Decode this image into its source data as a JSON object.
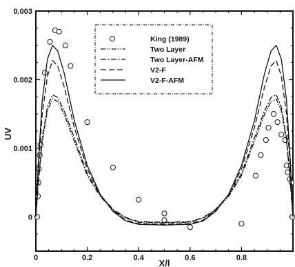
{
  "chart_data": {
    "type": "line",
    "title": "",
    "xlabel": "X/l",
    "ylabel": "UV",
    "xlim": [
      0,
      1
    ],
    "ylim": [
      -0.0005,
      0.003
    ],
    "x_ticks": [
      0,
      0.2,
      0.4,
      0.6,
      0.8
    ],
    "x_tick_labels": [
      "0",
      "0.2",
      "0.4",
      "0.6",
      "0.8"
    ],
    "y_ticks": [
      0,
      0.001,
      0.002,
      0.003
    ],
    "y_tick_labels": [
      "0",
      "0.001",
      "0.002",
      "0.003"
    ],
    "grid": false,
    "legend_position": "top-center",
    "series": [
      {
        "name": "King (1989)",
        "style": "markers-circle",
        "points": [
          [
            0.005,
            0.0
          ],
          [
            0.008,
            0.0003
          ],
          [
            0.01,
            0.0005
          ],
          [
            0.012,
            0.0007
          ],
          [
            0.015,
            0.0009
          ],
          [
            0.018,
            0.00105
          ],
          [
            0.035,
            0.0021
          ],
          [
            0.055,
            0.00255
          ],
          [
            0.075,
            0.00272
          ],
          [
            0.09,
            0.0027
          ],
          [
            0.115,
            0.0025
          ],
          [
            0.135,
            0.0022
          ],
          [
            0.2,
            0.00138
          ],
          [
            0.3,
            0.00072
          ],
          [
            0.4,
            0.00025
          ],
          [
            0.5,
            5e-05
          ],
          [
            0.5,
            -5e-05
          ],
          [
            0.6,
            -0.00015
          ],
          [
            0.8,
            -0.0001
          ],
          [
            0.855,
            0.0006
          ],
          [
            0.875,
            0.0009
          ],
          [
            0.895,
            0.00112
          ],
          [
            0.905,
            0.0013
          ],
          [
            0.925,
            0.0015
          ],
          [
            0.94,
            0.00138
          ],
          [
            0.955,
            0.0012
          ],
          [
            0.97,
            0.00112
          ],
          [
            0.975,
            0.00075
          ],
          [
            0.98,
            0.00065
          ],
          [
            0.988,
            0.00055
          ],
          [
            0.995,
            0.0005
          ],
          [
            0.998,
            0.0
          ]
        ]
      },
      {
        "name": "Two Layer",
        "style": "dash-dot-dot",
        "points": [
          [
            0.0,
            0.0
          ],
          [
            0.01,
            0.0005
          ],
          [
            0.025,
            0.0011
          ],
          [
            0.045,
            0.00155
          ],
          [
            0.065,
            0.00172
          ],
          [
            0.085,
            0.00168
          ],
          [
            0.11,
            0.0015
          ],
          [
            0.15,
            0.0011
          ],
          [
            0.2,
            0.0006
          ],
          [
            0.25,
            0.0003
          ],
          [
            0.3,
            0.0001
          ],
          [
            0.35,
            -2e-05
          ],
          [
            0.4,
            -8e-05
          ],
          [
            0.5,
            -9e-05
          ],
          [
            0.6,
            -8e-05
          ],
          [
            0.65,
            -2e-05
          ],
          [
            0.7,
            0.0001
          ],
          [
            0.75,
            0.0003
          ],
          [
            0.8,
            0.0006
          ],
          [
            0.85,
            0.0011
          ],
          [
            0.89,
            0.0015
          ],
          [
            0.915,
            0.00168
          ],
          [
            0.935,
            0.00172
          ],
          [
            0.955,
            0.00155
          ],
          [
            0.975,
            0.0011
          ],
          [
            0.99,
            0.0005
          ],
          [
            1.0,
            0.0
          ]
        ]
      },
      {
        "name": "Two Layer-AFM",
        "style": "dash-dot",
        "points": [
          [
            0.0,
            0.0
          ],
          [
            0.01,
            0.0005
          ],
          [
            0.025,
            0.00115
          ],
          [
            0.045,
            0.0016
          ],
          [
            0.065,
            0.00178
          ],
          [
            0.085,
            0.00174
          ],
          [
            0.11,
            0.00155
          ],
          [
            0.15,
            0.00115
          ],
          [
            0.2,
            0.00063
          ],
          [
            0.25,
            0.00032
          ],
          [
            0.3,
            0.00011
          ],
          [
            0.35,
            -1e-05
          ],
          [
            0.4,
            -7e-05
          ],
          [
            0.5,
            -8e-05
          ],
          [
            0.6,
            -7e-05
          ],
          [
            0.65,
            -1e-05
          ],
          [
            0.7,
            0.00011
          ],
          [
            0.75,
            0.00032
          ],
          [
            0.8,
            0.00063
          ],
          [
            0.85,
            0.00115
          ],
          [
            0.89,
            0.00155
          ],
          [
            0.915,
            0.00174
          ],
          [
            0.935,
            0.00178
          ],
          [
            0.955,
            0.0016
          ],
          [
            0.975,
            0.00115
          ],
          [
            0.99,
            0.0005
          ],
          [
            1.0,
            0.0
          ]
        ]
      },
      {
        "name": "V2-F",
        "style": "dashed",
        "points": [
          [
            0.0,
            0.0
          ],
          [
            0.01,
            0.0007
          ],
          [
            0.025,
            0.0015
          ],
          [
            0.045,
            0.00205
          ],
          [
            0.065,
            0.00228
          ],
          [
            0.085,
            0.0022
          ],
          [
            0.11,
            0.0019
          ],
          [
            0.15,
            0.0013
          ],
          [
            0.2,
            0.0007
          ],
          [
            0.25,
            0.00032
          ],
          [
            0.3,
            0.0001
          ],
          [
            0.35,
            -5e-05
          ],
          [
            0.4,
            -0.0001
          ],
          [
            0.5,
            -0.00011
          ],
          [
            0.6,
            -0.0001
          ],
          [
            0.65,
            -5e-05
          ],
          [
            0.7,
            0.0001
          ],
          [
            0.75,
            0.00032
          ],
          [
            0.8,
            0.0007
          ],
          [
            0.85,
            0.0013
          ],
          [
            0.89,
            0.0019
          ],
          [
            0.915,
            0.0022
          ],
          [
            0.935,
            0.00228
          ],
          [
            0.955,
            0.00205
          ],
          [
            0.975,
            0.0015
          ],
          [
            0.99,
            0.0007
          ],
          [
            1.0,
            0.0
          ]
        ]
      },
      {
        "name": "V2-F-AFM",
        "style": "solid",
        "points": [
          [
            0.0,
            0.0
          ],
          [
            0.01,
            0.0008
          ],
          [
            0.025,
            0.0017
          ],
          [
            0.045,
            0.0023
          ],
          [
            0.065,
            0.0025
          ],
          [
            0.085,
            0.00242
          ],
          [
            0.11,
            0.0021
          ],
          [
            0.15,
            0.0014
          ],
          [
            0.2,
            0.00075
          ],
          [
            0.25,
            0.00033
          ],
          [
            0.3,
            8e-05
          ],
          [
            0.35,
            -6e-05
          ],
          [
            0.4,
            -0.00011
          ],
          [
            0.5,
            -0.00012
          ],
          [
            0.6,
            -0.00011
          ],
          [
            0.65,
            -6e-05
          ],
          [
            0.7,
            8e-05
          ],
          [
            0.75,
            0.00033
          ],
          [
            0.8,
            0.00075
          ],
          [
            0.85,
            0.0014
          ],
          [
            0.89,
            0.0021
          ],
          [
            0.915,
            0.00242
          ],
          [
            0.935,
            0.0025
          ],
          [
            0.955,
            0.0023
          ],
          [
            0.975,
            0.0017
          ],
          [
            0.99,
            0.0008
          ],
          [
            1.0,
            0.0
          ]
        ]
      }
    ]
  }
}
